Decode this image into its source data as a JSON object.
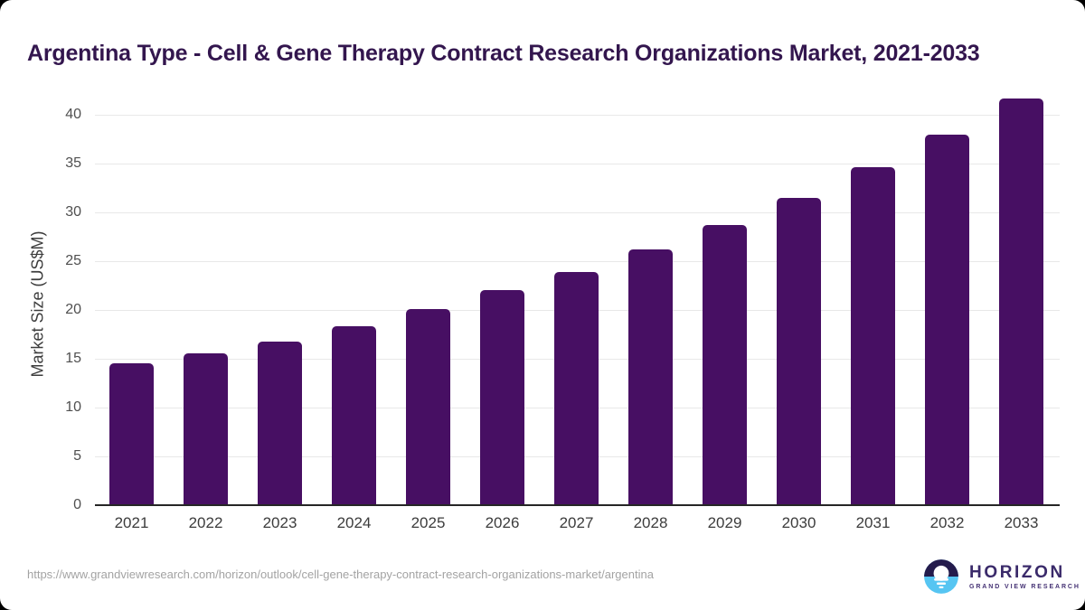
{
  "chart_data": {
    "type": "bar",
    "title": "Argentina Type - Cell & Gene Therapy Contract Research Organizations Market, 2021-2033",
    "categories": [
      "2021",
      "2022",
      "2023",
      "2024",
      "2025",
      "2026",
      "2027",
      "2028",
      "2029",
      "2030",
      "2031",
      "2032",
      "2033"
    ],
    "values": [
      14.5,
      15.6,
      16.8,
      18.3,
      20.1,
      22.0,
      23.9,
      26.2,
      28.7,
      31.5,
      34.6,
      38.0,
      41.7
    ],
    "xlabel": "",
    "ylabel": "Market Size (US$M)",
    "ylim": [
      0,
      43
    ],
    "yticks": [
      0,
      5,
      10,
      15,
      20,
      25,
      30,
      35,
      40
    ],
    "grid": true,
    "legend": "none",
    "bar_color": "#470f63"
  },
  "footer": {
    "source_url": "https://www.grandviewresearch.com/horizon/outlook/cell-gene-therapy-contract-research-organizations-market/argentina",
    "logo": {
      "brand": "HORIZON",
      "brand_subtitle": "GRAND VIEW RESEARCH",
      "logo_icon": "horizon-sunset-circle-icon"
    }
  },
  "colors": {
    "title_text": "#33164e",
    "bar": "#470f63",
    "axis_line": "#262626",
    "gridline": "#e8e8e8",
    "tick_label": "#4f4f4f",
    "axis_title": "#3d3d3d",
    "url_text": "#a3a3a3",
    "logo_navy": "#241b4c",
    "logo_blue": "#56c5f2",
    "logo_purple": "#3a2a6a",
    "card_background": "#ffffff",
    "page_background": "#000000"
  }
}
